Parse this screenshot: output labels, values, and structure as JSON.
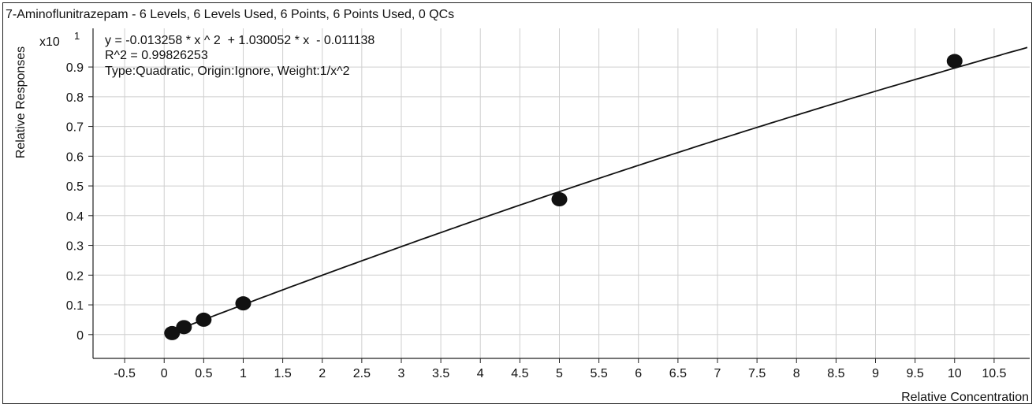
{
  "chart_data": {
    "type": "scatter",
    "title": "7-Aminoflunitrazepam - 6 Levels, 6 Levels Used, 6 Points, 6 Points Used, 0 QCs",
    "xlabel": "Relative Concentration",
    "ylabel": "Relative Responses",
    "y_multiplier": "x10",
    "y_multiplier_exp": "1",
    "equation": "y = -0.013258 * x ^ 2  + 1.030052 * x  - 0.011138",
    "r_squared": "R^2 = 0.99826253",
    "fit_info": "Type:Quadratic, Origin:Ignore, Weight:1/x^2",
    "x": [
      0.1,
      0.25,
      0.5,
      1,
      5,
      10
    ],
    "y": [
      0.005,
      0.025,
      0.05,
      0.105,
      0.455,
      0.92
    ],
    "fit": {
      "a": -0.013258,
      "b": 1.030052,
      "c": -0.011138,
      "y_scale": 0.1
    },
    "xlim": [
      -0.9,
      10.95
    ],
    "ylim": [
      -0.08,
      1.03
    ],
    "x_ticks": [
      "-0.5",
      "0",
      "0.5",
      "1",
      "1.5",
      "2",
      "2.5",
      "3",
      "3.5",
      "4",
      "4.5",
      "5",
      "5.5",
      "6",
      "6.5",
      "7",
      "7.5",
      "8",
      "8.5",
      "9",
      "9.5",
      "10",
      "10.5"
    ],
    "y_ticks": [
      "0",
      "0.1",
      "0.2",
      "0.3",
      "0.4",
      "0.5",
      "0.6",
      "0.7",
      "0.8",
      "0.9"
    ],
    "grid": true,
    "colors": {
      "points": "#111111",
      "curve": "#111111",
      "grid": "#cfcfcf"
    }
  }
}
